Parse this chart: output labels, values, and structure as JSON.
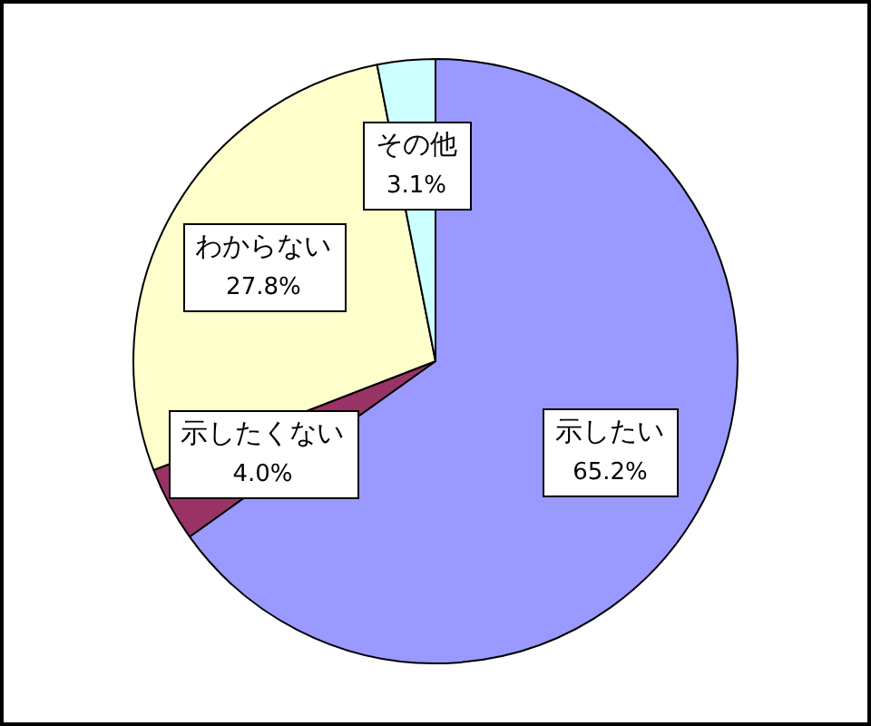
{
  "chart_data": {
    "type": "pie",
    "categories": [
      "示したい",
      "示したくない",
      "わからない",
      "その他"
    ],
    "values": [
      65.2,
      4.0,
      27.8,
      3.1
    ],
    "colors": [
      "#9999ff",
      "#993366",
      "#ffffcc",
      "#ccffff"
    ],
    "value_labels": [
      "65.2%",
      "4.0%",
      "27.8%",
      "3.1%"
    ],
    "legend": false
  }
}
